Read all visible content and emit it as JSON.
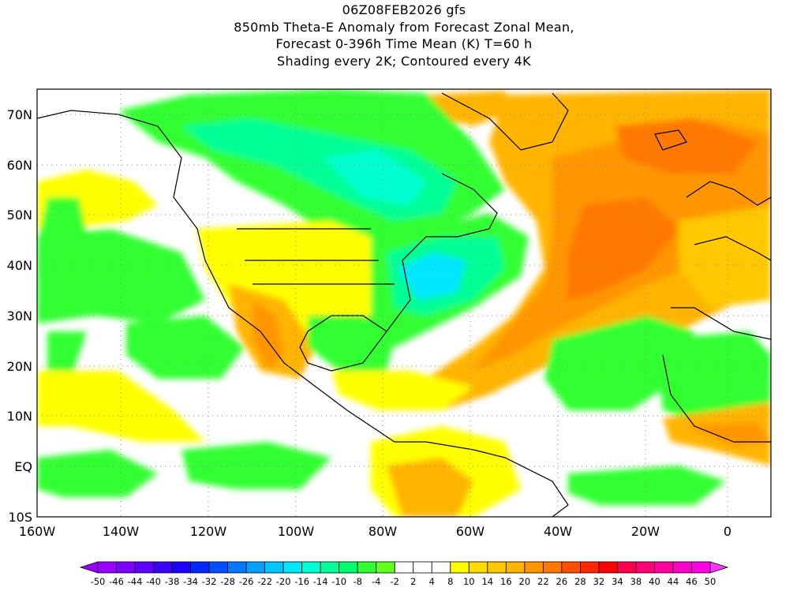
{
  "title": {
    "line1": "06Z08FEB2026 gfs",
    "line2": "850mb Theta-E Anomaly from Forecast Zonal Mean,",
    "line3": "Forecast 0-396h Time Mean (K) T=60 h",
    "line4": "Shading every 2K; Contoured every 4K"
  },
  "map": {
    "lon_range": [
      -160,
      10
    ],
    "lat_range": [
      -10,
      75
    ],
    "lon_labels": [
      "160W",
      "140W",
      "120W",
      "100W",
      "80W",
      "60W",
      "40W",
      "20W",
      "0"
    ],
    "lat_labels": [
      "70N",
      "60N",
      "50N",
      "40N",
      "30N",
      "20N",
      "10N",
      "EQ",
      "10S"
    ]
  },
  "colorbar": {
    "labels": [
      "-50",
      "-46",
      "-44",
      "-40",
      "-38",
      "-34",
      "-32",
      "-28",
      "-26",
      "-22",
      "-20",
      "-16",
      "-14",
      "-10",
      "-8",
      "-4",
      "-2",
      "2",
      "4",
      "8",
      "10",
      "14",
      "16",
      "20",
      "22",
      "26",
      "28",
      "32",
      "34",
      "38",
      "40",
      "44",
      "46",
      "50"
    ],
    "colors": [
      "#9b00ff",
      "#7d00ff",
      "#5f00ff",
      "#3c00ff",
      "#1e00ff",
      "#0028ff",
      "#0050ff",
      "#0078ff",
      "#00a0ff",
      "#00c8ff",
      "#00e6ff",
      "#00ffd2",
      "#00ff96",
      "#00ff6e",
      "#32ff32",
      "#64ff1e",
      "#ffffff",
      "#ffffff",
      "#ffffff",
      "#ffff00",
      "#ffdc00",
      "#ffc800",
      "#ffb400",
      "#ff9600",
      "#ff7800",
      "#ff5000",
      "#ff2800",
      "#ff0000",
      "#ff0050",
      "#ff0078",
      "#ff00a0",
      "#ff00c8",
      "#ff00e6"
    ],
    "end_low": "#9b00ff",
    "end_high": "#ff32ff"
  }
}
